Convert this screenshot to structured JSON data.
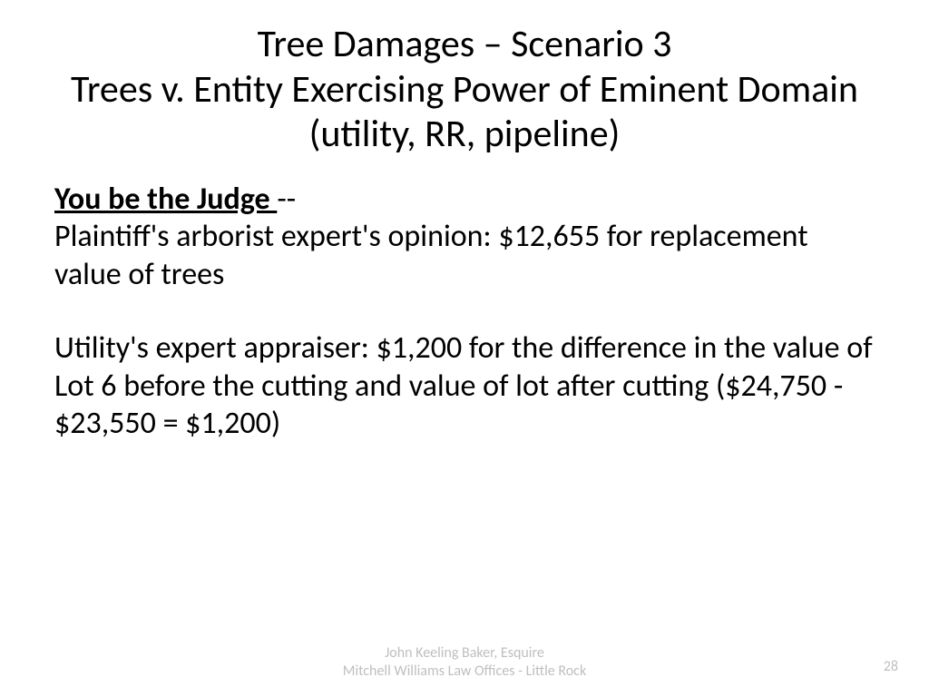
{
  "title": {
    "line1": "Tree Damages – Scenario 3",
    "line2": "Trees v. Entity Exercising Power of Eminent Domain (utility, RR, pipeline)"
  },
  "body": {
    "judge_label": "You be the Judge ",
    "judge_suffix": "--",
    "paragraph1": "Plaintiff's arborist expert's opinion:  $12,655 for replacement value of trees",
    "paragraph2": "Utility's expert appraiser:  $1,200 for the difference in the value of Lot 6 before the cutting and value of lot after cutting ($24,750 - $23,550 = $1,200)"
  },
  "footer": {
    "line1": "John Keeling Baker, Esquire",
    "line2": "Mitchell Williams Law Offices - Little Rock"
  },
  "page_number": "28",
  "colors": {
    "text": "#000000",
    "footer": "#bfbfbf",
    "background": "#ffffff"
  }
}
